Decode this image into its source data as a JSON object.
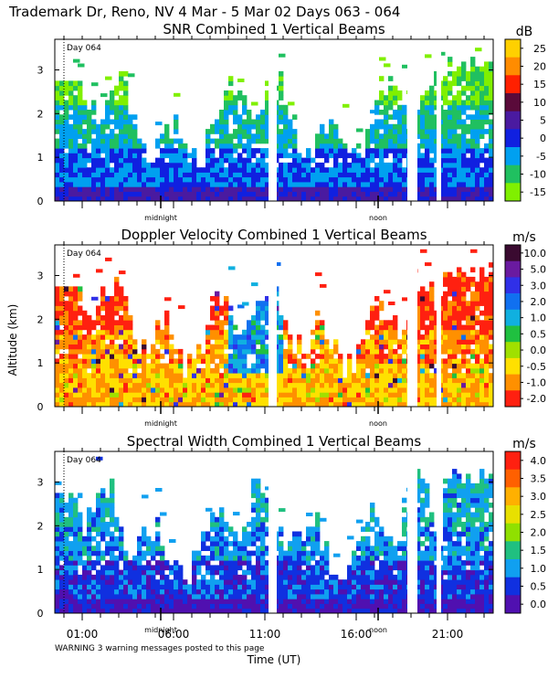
{
  "header": {
    "title": "Trademark Dr, Reno, NV   4 Mar -  5 Mar 02 Days 063 - 064"
  },
  "shared_axes": {
    "ylabel": "Altitude (km)",
    "xlabel": "Time (UT)",
    "xticks": [
      "01:00",
      "06:00",
      "11:00",
      "16:00",
      "21:00"
    ],
    "midnight_label": "midnight",
    "noon_label": "noon",
    "day_label": "Day 064"
  },
  "footer": {
    "warning": "WARNING   3 warning messages posted to this page"
  },
  "chart_data": [
    {
      "type": "heatmap",
      "title": "SNR Combined 1 Vertical Beams",
      "unit": "dB",
      "yticks": [
        "0",
        "1",
        "2",
        "3"
      ],
      "ylim": [
        0,
        3.7
      ],
      "scale_labels": [
        "25",
        "20",
        "15",
        "10",
        "5",
        "0",
        "-5",
        "-10",
        "-15"
      ],
      "colors": [
        "#ffd000",
        "#ff8c00",
        "#ff2000",
        "#5a0a3a",
        "#4a1aa0",
        "#1020e0",
        "#00a0f0",
        "#20c060",
        "#80f000"
      ]
    },
    {
      "type": "heatmap",
      "title": "Doppler Velocity Combined 1 Vertical Beams",
      "unit": "m/s",
      "yticks": [
        "0",
        "1",
        "2",
        "3"
      ],
      "ylim": [
        0,
        3.7
      ],
      "scale_labels": [
        "10.0",
        "5.0",
        "3.0",
        "2.0",
        "1.0",
        "0.5",
        "0.0",
        "-0.5",
        "-1.0",
        "-2.0"
      ],
      "colors": [
        "#3a0a30",
        "#6a1aa0",
        "#3030e8",
        "#1070f0",
        "#10b0e0",
        "#20c040",
        "#a0e000",
        "#ffe000",
        "#ff9000",
        "#ff2010"
      ]
    },
    {
      "type": "heatmap",
      "title": "Spectral Width Combined 1 Vertical Beams",
      "unit": "m/s",
      "yticks": [
        "0",
        "1",
        "2",
        "3"
      ],
      "ylim": [
        0,
        3.7
      ],
      "scale_labels": [
        "4.0",
        "3.5",
        "3.0",
        "2.5",
        "2.0",
        "1.5",
        "1.0",
        "0.5",
        "0.0"
      ],
      "colors": [
        "#ff2010",
        "#ff6000",
        "#ffb000",
        "#e8e000",
        "#90e000",
        "#20c080",
        "#10a0f0",
        "#1030e0",
        "#5010b0"
      ]
    }
  ]
}
